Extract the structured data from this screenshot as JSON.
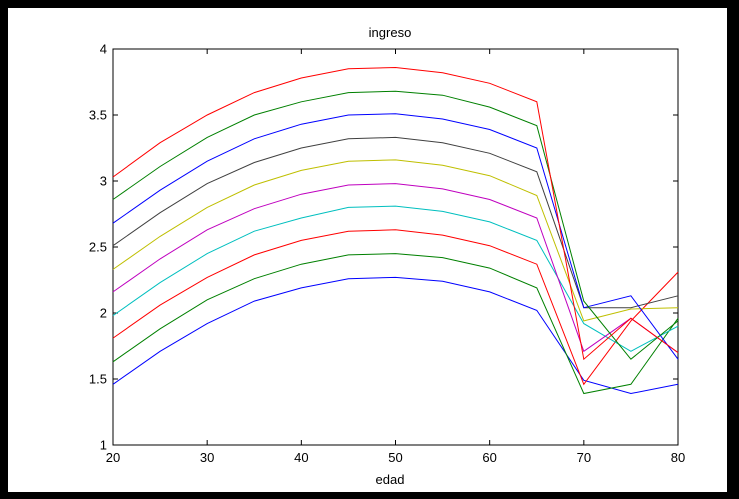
{
  "colors": {
    "background": "#000000",
    "figure": "#ffffff",
    "axis": "#000000"
  },
  "chart_data": {
    "type": "line",
    "title": "ingreso",
    "xlabel": "edad",
    "ylabel": "",
    "xlim": [
      20,
      80
    ],
    "ylim": [
      1,
      4
    ],
    "xticks": [
      20,
      30,
      40,
      50,
      60,
      70,
      80
    ],
    "yticks": [
      1,
      1.5,
      2,
      2.5,
      3,
      3.5,
      4
    ],
    "xtick_labels": [
      "20",
      "30",
      "40",
      "50",
      "60",
      "70",
      "80"
    ],
    "ytick_labels": [
      "1",
      "1.5",
      "2",
      "2.5",
      "3",
      "3.5",
      "4"
    ],
    "grid": false,
    "legend": "none",
    "x": [
      20,
      25,
      30,
      35,
      40,
      45,
      50,
      55,
      60,
      65,
      70,
      75,
      80
    ],
    "series": [
      {
        "color": "#0000ff",
        "values": [
          1.46,
          1.71,
          1.92,
          2.09,
          2.19,
          2.26,
          2.27,
          2.24,
          2.16,
          2.02,
          1.49,
          1.39,
          1.46
        ]
      },
      {
        "color": "#008000",
        "values": [
          1.63,
          1.88,
          2.1,
          2.26,
          2.37,
          2.44,
          2.45,
          2.42,
          2.34,
          2.19,
          1.39,
          1.46,
          1.96
        ]
      },
      {
        "color": "#ff0000",
        "values": [
          1.81,
          2.06,
          2.27,
          2.44,
          2.55,
          2.62,
          2.63,
          2.59,
          2.51,
          2.37,
          1.46,
          1.94,
          2.31
        ]
      },
      {
        "color": "#00bfbf",
        "values": [
          1.98,
          2.23,
          2.45,
          2.62,
          2.72,
          2.8,
          2.81,
          2.77,
          2.69,
          2.55,
          1.92,
          1.71,
          1.9
        ]
      },
      {
        "color": "#bf00bf",
        "values": [
          2.16,
          2.41,
          2.63,
          2.79,
          2.9,
          2.97,
          2.98,
          2.94,
          2.86,
          2.72,
          1.71,
          1.96,
          1.7
        ]
      },
      {
        "color": "#bfbf00",
        "values": [
          2.33,
          2.58,
          2.8,
          2.97,
          3.08,
          3.15,
          3.16,
          3.12,
          3.04,
          2.89,
          1.94,
          2.03,
          2.04
        ]
      },
      {
        "color": "#404040",
        "values": [
          2.51,
          2.76,
          2.98,
          3.14,
          3.25,
          3.32,
          3.33,
          3.29,
          3.21,
          3.07,
          2.04,
          2.04,
          2.13
        ]
      },
      {
        "color": "#0000ff",
        "values": [
          2.68,
          2.93,
          3.15,
          3.32,
          3.43,
          3.5,
          3.51,
          3.47,
          3.39,
          3.25,
          2.04,
          2.13,
          1.65
        ]
      },
      {
        "color": "#008000",
        "values": [
          2.86,
          3.11,
          3.33,
          3.5,
          3.6,
          3.67,
          3.68,
          3.65,
          3.56,
          3.42,
          2.09,
          1.65,
          1.94
        ]
      },
      {
        "color": "#ff0000",
        "values": [
          3.03,
          3.29,
          3.5,
          3.67,
          3.78,
          3.85,
          3.86,
          3.82,
          3.74,
          3.6,
          1.65,
          1.96,
          1.7
        ]
      }
    ]
  }
}
